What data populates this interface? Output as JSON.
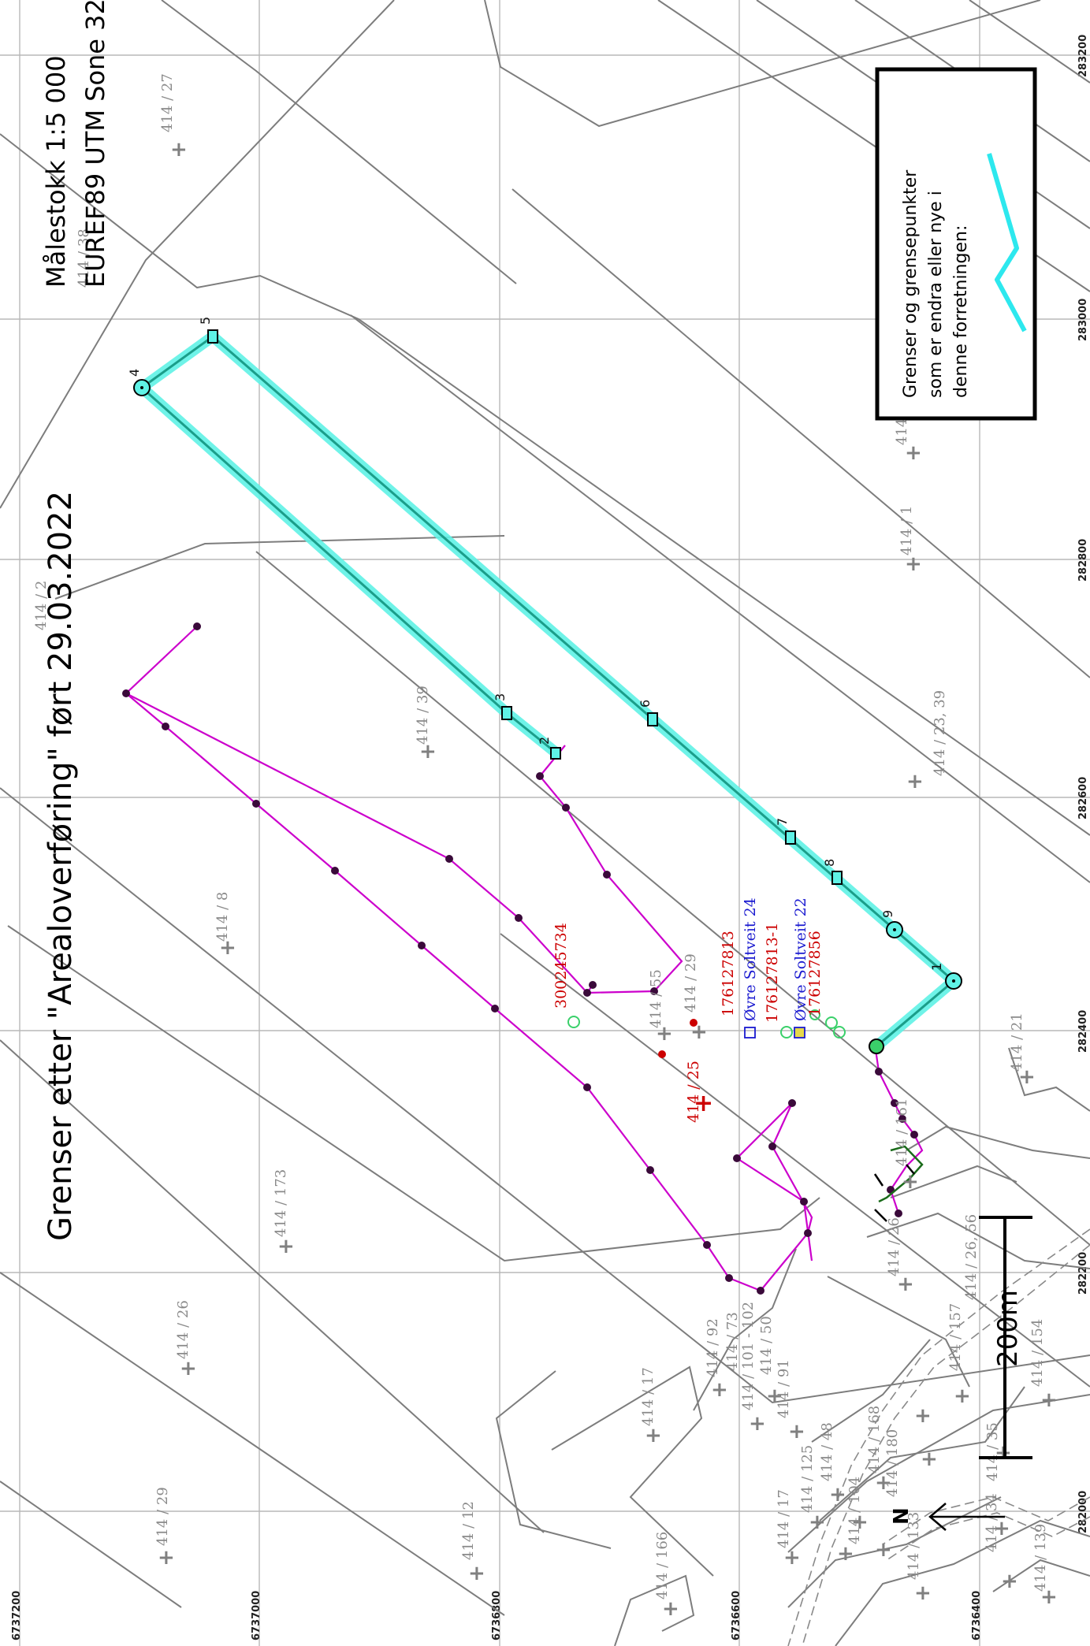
{
  "title": "Grenser etter \"Arealoverføring\" ført 29.03.2022",
  "scale_text": "Målestokk 1:5 000",
  "crs_text": "EUREF89 UTM Sone 32",
  "legend_text": [
    "Grenser og grensepunkter",
    "som er endra eller nye i",
    "denne forretningen:"
  ],
  "legend_line_color": "#2de8ee",
  "scalebar_label": "200m",
  "north_label": "N",
  "northing_labels": [
    "6737200",
    "6737000",
    "6736800",
    "6736600",
    "6736400"
  ],
  "easting_labels": [
    "283200",
    "283000",
    "282800",
    "282600",
    "282400",
    "282200",
    "282000"
  ],
  "boundary_point_numbers": [
    "1",
    "2",
    "3",
    "4",
    "5",
    "6",
    "7",
    "8",
    "9"
  ],
  "parcels": [
    "414 / 27",
    "414 / 38",
    "414 / 2",
    "414 / 39",
    "414 / 8",
    "414 / 173",
    "414 / 26",
    "414 / 29",
    "414 / 12",
    "414 / 17",
    "414 / 166",
    "414 / 55",
    "414 / 25",
    "414 / 29",
    "414 / 23, 39",
    "414 / 1",
    "414",
    "414 / 21",
    "414 / 161",
    "414 / 26",
    "414 / 36",
    "414 / 26, 56",
    "414 / 92",
    "414 / 73",
    "414 / 101 - 102",
    "414 / 50",
    "414 / 91",
    "414 / 157",
    "414 / 154",
    "414 / 17",
    "414 / 125",
    "414 / 48",
    "414 / 168",
    "414 / 180",
    "414 / 104",
    "414 / 34",
    "414 / 35",
    "414 / 139",
    "414 / 133"
  ],
  "red_labels": [
    "300245734",
    "176127813",
    "176127813-1",
    "176127856",
    "414 / 25"
  ],
  "address_labels": [
    "Øvre Soltveit 24",
    "Øvre Soltveit 22"
  ],
  "colors": {
    "changed_boundary": "#2de8ee",
    "other_boundary": "#cc00cc",
    "parcel_line": "#7d7d7d"
  }
}
